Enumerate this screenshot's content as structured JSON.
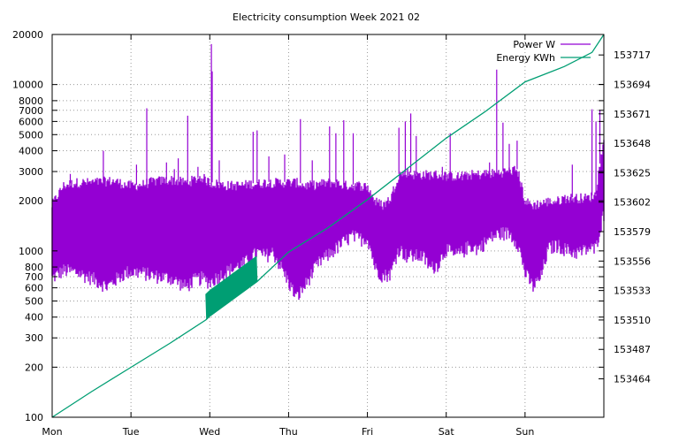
{
  "chart_data": {
    "type": "line",
    "title": "Electricity consumption Week 2021 02",
    "xlabel": "",
    "ylabel": "",
    "y2label": "",
    "x_axis": {
      "range": [
        0,
        7
      ],
      "ticks": [
        {
          "value": 0,
          "label": "Mon"
        },
        {
          "value": 1,
          "label": "Tue"
        },
        {
          "value": 2,
          "label": "Wed"
        },
        {
          "value": 3,
          "label": "Thu"
        },
        {
          "value": 4,
          "label": "Fri"
        },
        {
          "value": 5,
          "label": "Sat"
        },
        {
          "value": 6,
          "label": "Sun"
        }
      ]
    },
    "y_axis": {
      "scale": "log",
      "range": [
        100,
        20000
      ],
      "ticks": [
        {
          "value": 100,
          "label": "100"
        },
        {
          "value": 200,
          "label": "200"
        },
        {
          "value": 300,
          "label": "300"
        },
        {
          "value": 400,
          "label": "400"
        },
        {
          "value": 500,
          "label": "500"
        },
        {
          "value": 600,
          "label": "600"
        },
        {
          "value": 700,
          "label": "700"
        },
        {
          "value": 800,
          "label": "800"
        },
        {
          "value": 1000,
          "label": "1000"
        },
        {
          "value": 2000,
          "label": "2000"
        },
        {
          "value": 3000,
          "label": "3000"
        },
        {
          "value": 4000,
          "label": "4000"
        },
        {
          "value": 5000,
          "label": "5000"
        },
        {
          "value": 6000,
          "label": "6000"
        },
        {
          "value": 7000,
          "label": "7000"
        },
        {
          "value": 8000,
          "label": "8000"
        },
        {
          "value": 10000,
          "label": "10000"
        },
        {
          "value": 20000,
          "label": "20000"
        }
      ]
    },
    "y2_axis": {
      "scale": "linear",
      "range": [
        153434,
        153733
      ],
      "ticks": [
        {
          "value": 153464,
          "label": "153464"
        },
        {
          "value": 153487,
          "label": "153487"
        },
        {
          "value": 153510,
          "label": "153510"
        },
        {
          "value": 153533,
          "label": "153533"
        },
        {
          "value": 153556,
          "label": "153556"
        },
        {
          "value": 153579,
          "label": "153579"
        },
        {
          "value": 153602,
          "label": "153602"
        },
        {
          "value": 153625,
          "label": "153625"
        },
        {
          "value": 153648,
          "label": "153648"
        },
        {
          "value": 153671,
          "label": "153671"
        },
        {
          "value": 153694,
          "label": "153694"
        },
        {
          "value": 153717,
          "label": "153717"
        }
      ]
    },
    "grid": true,
    "legend_position": "top-right",
    "series": [
      {
        "name": "Power W",
        "axis": "y",
        "color": "#9400d3",
        "style": "band",
        "x": [
          0,
          0.15,
          0.3,
          0.5,
          0.7,
          0.8,
          0.95,
          1.1,
          1.3,
          1.5,
          1.7,
          1.8,
          1.9,
          2.0,
          2.2,
          2.4,
          2.5,
          2.6,
          2.7,
          2.8,
          2.9,
          3.0,
          3.1,
          3.2,
          3.3,
          3.4,
          3.5,
          3.6,
          3.7,
          3.8,
          3.9,
          4.0,
          4.1,
          4.2,
          4.3,
          4.4,
          4.5,
          4.6,
          4.7,
          4.8,
          4.9,
          5.0,
          5.1,
          5.2,
          5.3,
          5.4,
          5.5,
          5.6,
          5.7,
          5.8,
          5.9,
          6.0,
          6.1,
          6.2,
          6.3,
          6.4,
          6.5,
          6.6,
          6.7,
          6.8,
          6.9,
          7.0
        ],
        "low": [
          700,
          780,
          760,
          700,
          620,
          680,
          760,
          760,
          720,
          700,
          620,
          680,
          700,
          660,
          760,
          840,
          900,
          1000,
          950,
          1000,
          820,
          660,
          530,
          620,
          750,
          880,
          960,
          1050,
          1150,
          1250,
          1200,
          1220,
          800,
          720,
          750,
          1050,
          950,
          950,
          950,
          800,
          850,
          1050,
          950,
          1000,
          1100,
          1050,
          1150,
          1250,
          1300,
          1300,
          1150,
          750,
          620,
          700,
          1050,
          1100,
          1050,
          1000,
          1000,
          1050,
          1050,
          1700
        ],
        "high": [
          1900,
          2500,
          2600,
          2600,
          2650,
          2650,
          2500,
          2500,
          2650,
          2700,
          2600,
          2700,
          2800,
          2600,
          2500,
          2500,
          2550,
          2550,
          2600,
          2600,
          2600,
          2600,
          2600,
          2500,
          2500,
          2550,
          2600,
          2600,
          2500,
          2500,
          2500,
          2450,
          2000,
          1900,
          2100,
          2900,
          3000,
          2900,
          2900,
          2900,
          2900,
          2850,
          2850,
          2800,
          2900,
          2900,
          2950,
          2950,
          3000,
          3050,
          3100,
          2000,
          1900,
          1950,
          2000,
          2000,
          2100,
          2100,
          2100,
          2100,
          2200,
          4500
        ]
      },
      {
        "name": "Energy KWh",
        "axis": "y2",
        "color": "#009e73",
        "style": "line",
        "x": [
          0,
          0.5,
          1.0,
          1.5,
          1.95,
          2.0,
          2.6,
          3.0,
          3.5,
          4.0,
          4.5,
          5.0,
          5.5,
          6.0,
          6.5,
          6.85,
          7.0
        ],
        "values": [
          153434,
          153454,
          153473,
          153492,
          153510,
          153513,
          153540,
          153563,
          153582,
          153604,
          153628,
          153652,
          153673,
          153696,
          153708,
          153719,
          153733
        ]
      }
    ],
    "energy_spike": {
      "x": [
        1.95,
        2.6
      ],
      "high_offset": 20
    },
    "power_spikes": [
      {
        "x": 0.23,
        "value": 2900
      },
      {
        "x": 0.65,
        "value": 4000
      },
      {
        "x": 1.07,
        "value": 3300
      },
      {
        "x": 1.2,
        "value": 7200
      },
      {
        "x": 1.45,
        "value": 3400
      },
      {
        "x": 1.55,
        "value": 3100
      },
      {
        "x": 1.6,
        "value": 3600
      },
      {
        "x": 1.72,
        "value": 6500
      },
      {
        "x": 1.85,
        "value": 3200
      },
      {
        "x": 2.02,
        "value": 17500
      },
      {
        "x": 2.03,
        "value": 12000
      },
      {
        "x": 2.12,
        "value": 3500
      },
      {
        "x": 2.55,
        "value": 5200
      },
      {
        "x": 2.6,
        "value": 5300
      },
      {
        "x": 2.75,
        "value": 3700
      },
      {
        "x": 2.95,
        "value": 3800
      },
      {
        "x": 3.15,
        "value": 6200
      },
      {
        "x": 3.3,
        "value": 3500
      },
      {
        "x": 3.52,
        "value": 5600
      },
      {
        "x": 3.6,
        "value": 5100
      },
      {
        "x": 3.7,
        "value": 6100
      },
      {
        "x": 3.82,
        "value": 5100
      },
      {
        "x": 4.4,
        "value": 5500
      },
      {
        "x": 4.48,
        "value": 6000
      },
      {
        "x": 4.55,
        "value": 6700
      },
      {
        "x": 4.62,
        "value": 4900
      },
      {
        "x": 4.95,
        "value": 3200
      },
      {
        "x": 5.05,
        "value": 5100
      },
      {
        "x": 5.2,
        "value": 3000
      },
      {
        "x": 5.55,
        "value": 3400
      },
      {
        "x": 5.64,
        "value": 12300
      },
      {
        "x": 5.72,
        "value": 5900
      },
      {
        "x": 5.8,
        "value": 4400
      },
      {
        "x": 5.9,
        "value": 4600
      },
      {
        "x": 6.6,
        "value": 3300
      },
      {
        "x": 6.85,
        "value": 7100
      },
      {
        "x": 6.9,
        "value": 6000
      },
      {
        "x": 6.95,
        "value": 7000
      }
    ]
  }
}
